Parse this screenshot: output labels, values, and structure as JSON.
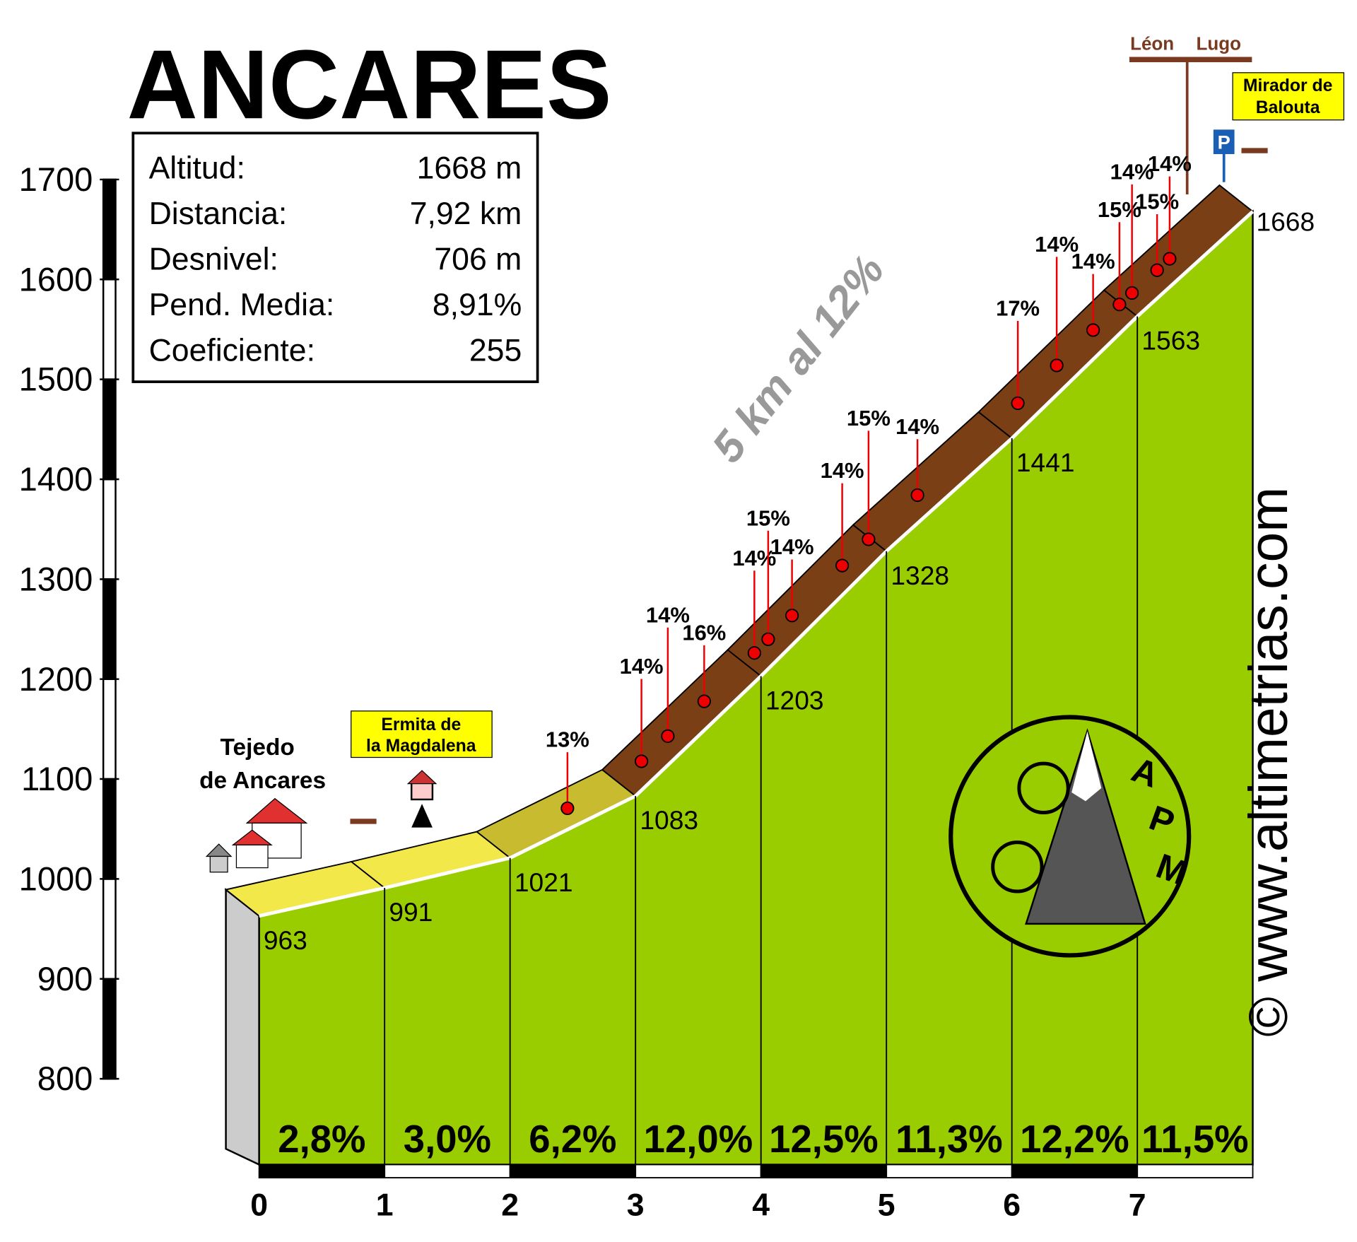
{
  "chart_data": {
    "type": "profile",
    "title": "ANCARES",
    "stats": [
      {
        "label": "Altitud:",
        "value": "1668 m"
      },
      {
        "label": "Distancia:",
        "value": "7,92 km"
      },
      {
        "label": "Desnivel:",
        "value": "706 m"
      },
      {
        "label": "Pend. Media:",
        "value": "8,91%"
      },
      {
        "label": "Coeficiente:",
        "value": "255"
      }
    ],
    "x": [
      0,
      1,
      2,
      3,
      4,
      5,
      6,
      7,
      7.92
    ],
    "values": [
      963,
      991,
      1021,
      1083,
      1203,
      1328,
      1441,
      1563,
      1668
    ],
    "xlim": [
      0,
      7.92
    ],
    "xticks": [
      0,
      1,
      2,
      3,
      4,
      5,
      6,
      7
    ],
    "ylim": [
      800,
      1700
    ],
    "yticks": [
      800,
      900,
      1000,
      1100,
      1200,
      1300,
      1400,
      1500,
      1600,
      1700
    ],
    "segments": {
      "values": [
        2.8,
        3.0,
        6.2,
        12.0,
        12.5,
        11.3,
        12.2,
        11.5
      ],
      "value_labels": [
        "2,8%",
        "3,0%",
        "6,2%",
        "12,0%",
        "12,5%",
        "11,3%",
        "12,2%",
        "11,5%"
      ]
    },
    "ramps": {
      "x": [
        2.59,
        3.18,
        3.39,
        3.68,
        4.08,
        4.19,
        4.38,
        4.78,
        4.99,
        5.38,
        6.18,
        6.49,
        6.78,
        6.99,
        7.09,
        7.29,
        7.39
      ],
      "values": [
        13,
        14,
        14,
        16,
        14,
        15,
        14,
        14,
        15,
        14,
        17,
        14,
        14,
        15,
        14,
        15,
        14
      ],
      "value_labels": [
        "13%",
        "14%",
        "14%",
        "16%",
        "14%",
        "15%",
        "14%",
        "14%",
        "15%",
        "14%",
        "17%",
        "14%",
        "14%",
        "15%",
        "14%",
        "15%",
        "14%"
      ]
    },
    "annotation": "5 km al 12%",
    "places": {
      "start": [
        "Tejedo",
        "de Ancares"
      ],
      "chapel": [
        "Ermita de",
        "la Magdalena"
      ],
      "top": [
        "Mirador de",
        "Balouta"
      ],
      "left_road": "Léon",
      "right_road": "Lugo"
    },
    "logo": [
      "A",
      "P",
      "M"
    ],
    "credit": "© www.altimetrias.com"
  }
}
